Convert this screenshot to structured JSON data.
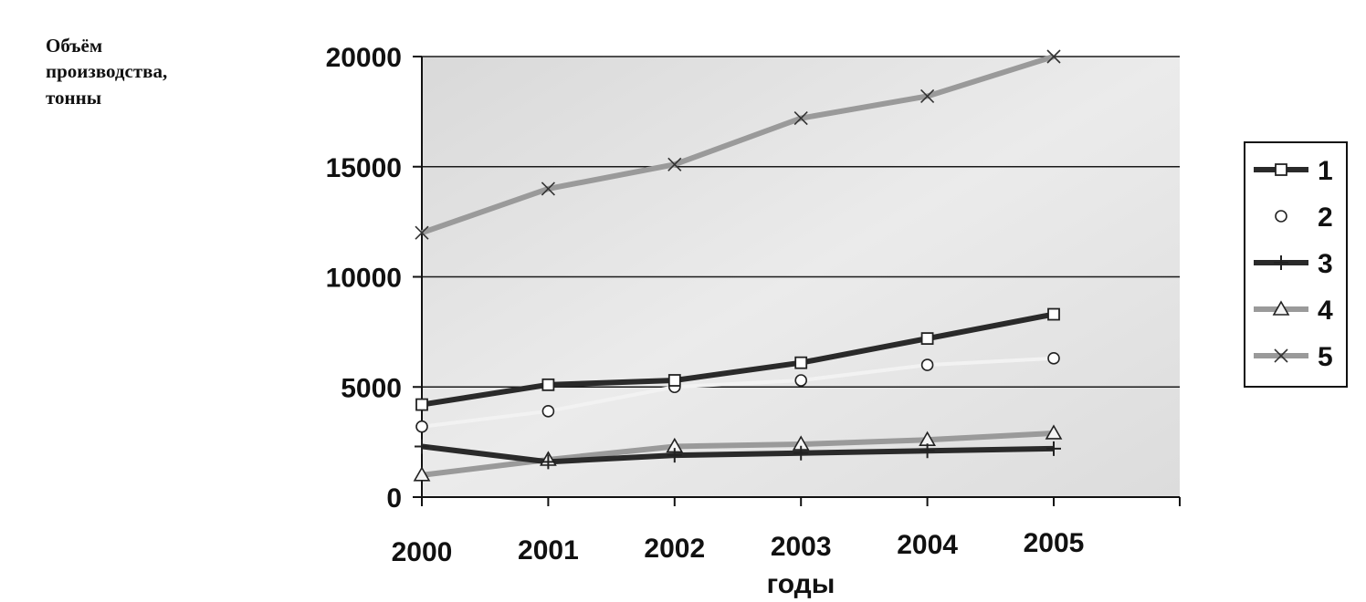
{
  "chart_data": {
    "type": "line",
    "title": "",
    "ylabel_lines": [
      "Объём",
      "производства,",
      "тонны"
    ],
    "xlabel": "годы",
    "categories": [
      "2000",
      "2001",
      "2002",
      "2003",
      "2004",
      "2005"
    ],
    "ylim": [
      0,
      20000
    ],
    "yticks": [
      "0",
      "5000",
      "10000",
      "15000",
      "20000"
    ],
    "grid": true,
    "legend_position": "right",
    "series": [
      {
        "name": "1",
        "values": [
          4200,
          5100,
          5300,
          6100,
          7200,
          8300
        ],
        "color": "#2a2a2a",
        "marker": "square",
        "line": true
      },
      {
        "name": "2",
        "values": [
          3200,
          3900,
          5000,
          5300,
          6000,
          6300
        ],
        "color": "#f2f2f2",
        "marker": "circle",
        "line": true
      },
      {
        "name": "3",
        "values": [
          2300,
          1600,
          1900,
          2000,
          2100,
          2200
        ],
        "color": "#2a2a2a",
        "marker": "plus",
        "line": true
      },
      {
        "name": "4",
        "values": [
          1000,
          1700,
          2300,
          2400,
          2600,
          2900
        ],
        "color": "#9a9a9a",
        "marker": "triangle",
        "line": true
      },
      {
        "name": "5",
        "values": [
          12000,
          14000,
          15100,
          17200,
          18200,
          20000
        ],
        "color": "#9a9a9a",
        "marker": "x",
        "line": true
      }
    ]
  }
}
